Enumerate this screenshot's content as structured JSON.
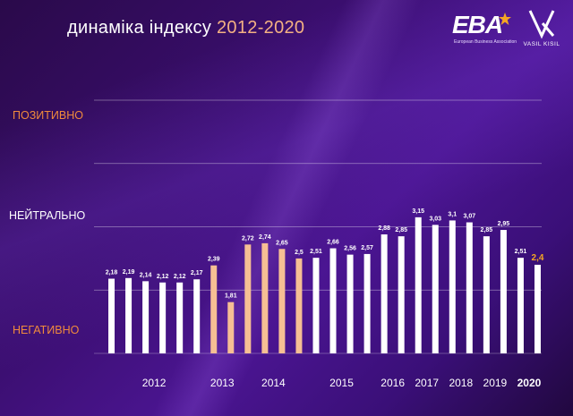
{
  "header": {
    "title_prefix": "динаміка індексу",
    "title_years": "2012-2020"
  },
  "logos": {
    "eba_mark": "EBA",
    "eba_caption": "European Business Association",
    "vk_caption": "VASIL KISIL"
  },
  "side_labels": {
    "positive": "ПОЗИТИВНО",
    "neutral": "НЕЙТРАЛЬНО",
    "negative": "НЕГАТИВНО"
  },
  "colors": {
    "positive_label": "#f08a3c",
    "neutral_label": "#ffffff",
    "negative_label": "#f08a3c",
    "bar_default": "#ffffff",
    "bar_highlight": "#f6bf94",
    "bar_latest": "#ffffff",
    "latest_value": "#f5a623"
  },
  "chart_data": {
    "type": "bar",
    "ylim": [
      1,
      5
    ],
    "grid": true,
    "y_levels_labeled": [
      "ПОЗИТИВНО",
      "НЕЙТРАЛЬНО",
      "НЕГАТИВНО"
    ],
    "years": [
      "2012",
      "2013",
      "2014",
      "2015",
      "2016",
      "2017",
      "2018",
      "2019",
      "2020"
    ],
    "series": [
      {
        "values": [
          2.18,
          2.19,
          2.14,
          2.12,
          2.12,
          2.17,
          2.39,
          1.81,
          2.72,
          2.74,
          2.65,
          2.5,
          2.51,
          2.66,
          2.56,
          2.57,
          2.88,
          2.85,
          3.15,
          3.03,
          3.1,
          3.07,
          2.85,
          2.95,
          2.51,
          2.4
        ],
        "value_labels": [
          "2,18",
          "2,19",
          "2,14",
          "2,12",
          "2,12",
          "2,17",
          "2,39",
          "1,81",
          "2,72",
          "2,74",
          "2,65",
          "2,5",
          "2,51",
          "2,66",
          "2,56",
          "2,57",
          "2,88",
          "2,85",
          "3,15",
          "3,03",
          "3,1",
          "3,07",
          "2,85",
          "2,95",
          "2,51",
          "2,4"
        ],
        "highlighted": [
          false,
          false,
          false,
          false,
          false,
          false,
          true,
          true,
          true,
          true,
          true,
          true,
          false,
          false,
          false,
          false,
          false,
          false,
          false,
          false,
          false,
          false,
          false,
          false,
          false,
          true
        ]
      }
    ]
  }
}
